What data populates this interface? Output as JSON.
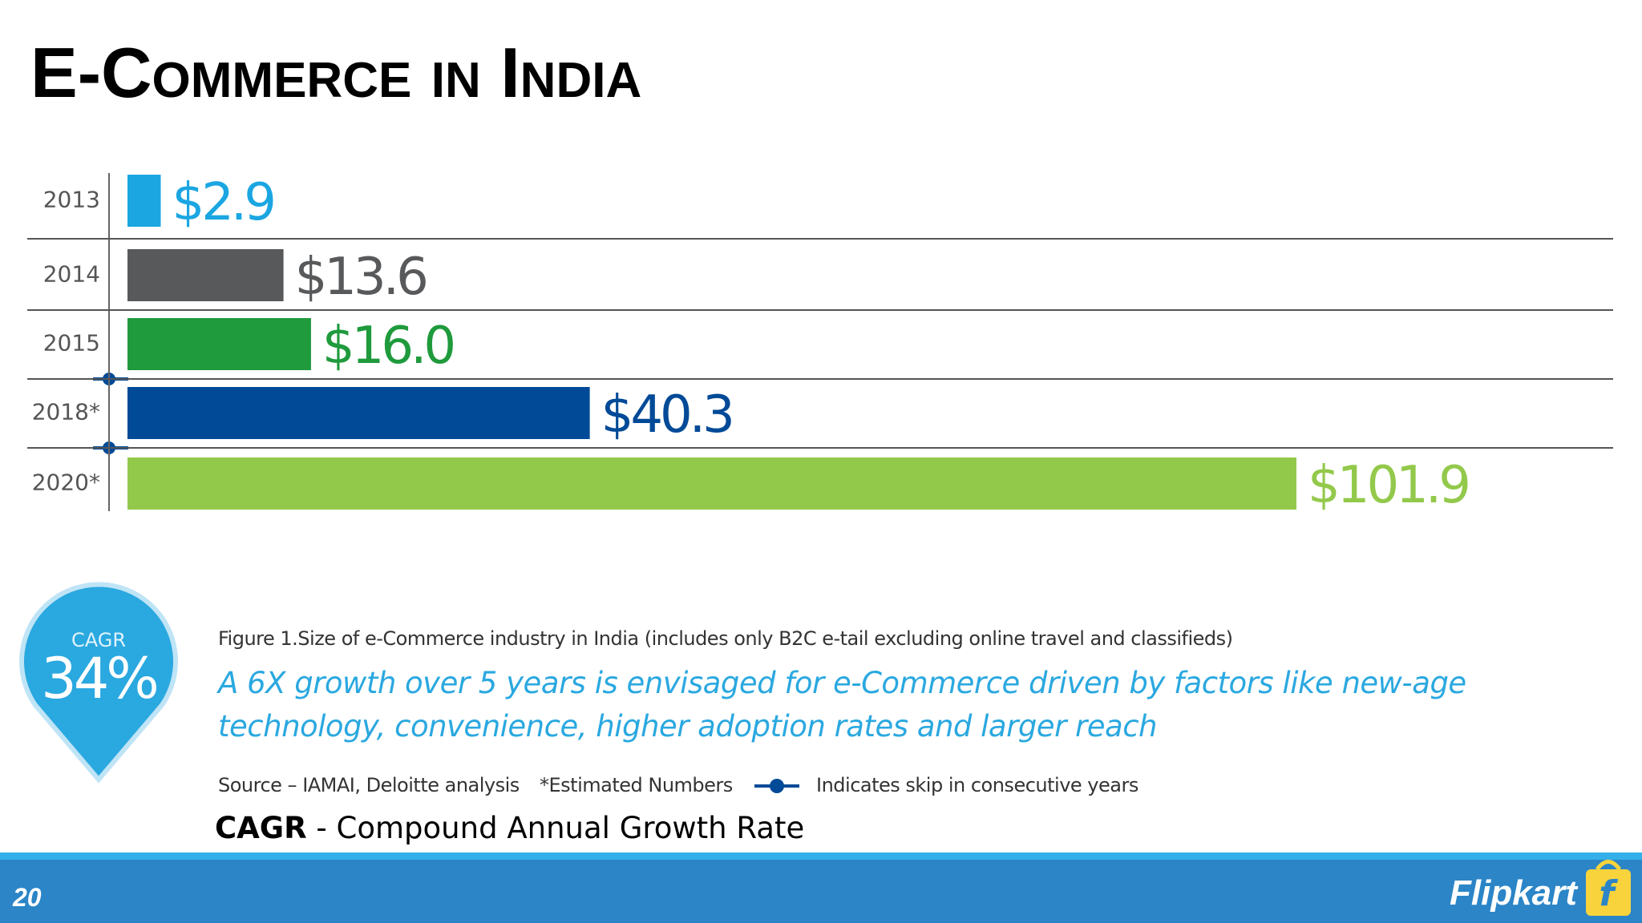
{
  "title": "E-Commerce in India",
  "chart_data": {
    "type": "bar",
    "orientation": "horizontal",
    "categories": [
      "2013",
      "2014",
      "2015",
      "2018*",
      "2020*"
    ],
    "values": [
      2.9,
      13.6,
      16.0,
      40.3,
      101.9
    ],
    "value_labels": [
      "$2.9",
      "$13.6",
      "$16.0",
      "$40.3",
      "$101.9"
    ],
    "colors": [
      "#1ba6e2",
      "#58595b",
      "#1f9a3c",
      "#004a97",
      "#93c94b"
    ],
    "caption": "Figure 1.Size of e-Commerce industry in India (includes only B2C e-tail excluding online travel and classifieds)",
    "source": "Source – IAMAI, Deloitte analysis",
    "note": "*Estimated Numbers",
    "legend": "Indicates skip in consecutive years"
  },
  "badge": {
    "label": "CAGR",
    "value": "34%"
  },
  "highlight": "A 6X growth over 5 years is envisaged for e-Commerce driven by factors like new-age technology, convenience, higher adoption rates and larger reach",
  "definition": {
    "term": "CAGR",
    "text": "- Compound Annual Growth Rate"
  },
  "footer": {
    "page": "20",
    "brand": "Flipkart"
  }
}
